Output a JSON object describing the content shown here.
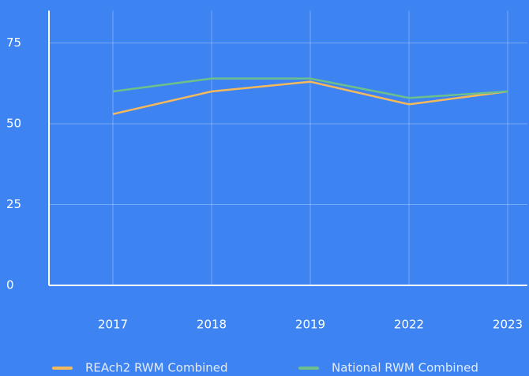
{
  "chart_data": {
    "type": "line",
    "categories": [
      "2017",
      "2018",
      "2019",
      "2022",
      "2023"
    ],
    "series": [
      {
        "name": "REAch2 RWM Combined",
        "color": "#f5b95c",
        "values": [
          53,
          60,
          63,
          56,
          60
        ]
      },
      {
        "name": "National RWM Combined",
        "color": "#6dc08c",
        "values": [
          60,
          64,
          64,
          58,
          60
        ]
      }
    ],
    "ylim": [
      0,
      85
    ],
    "yticks": [
      0,
      25,
      50,
      75
    ],
    "grid": true,
    "legend": "bottom"
  }
}
